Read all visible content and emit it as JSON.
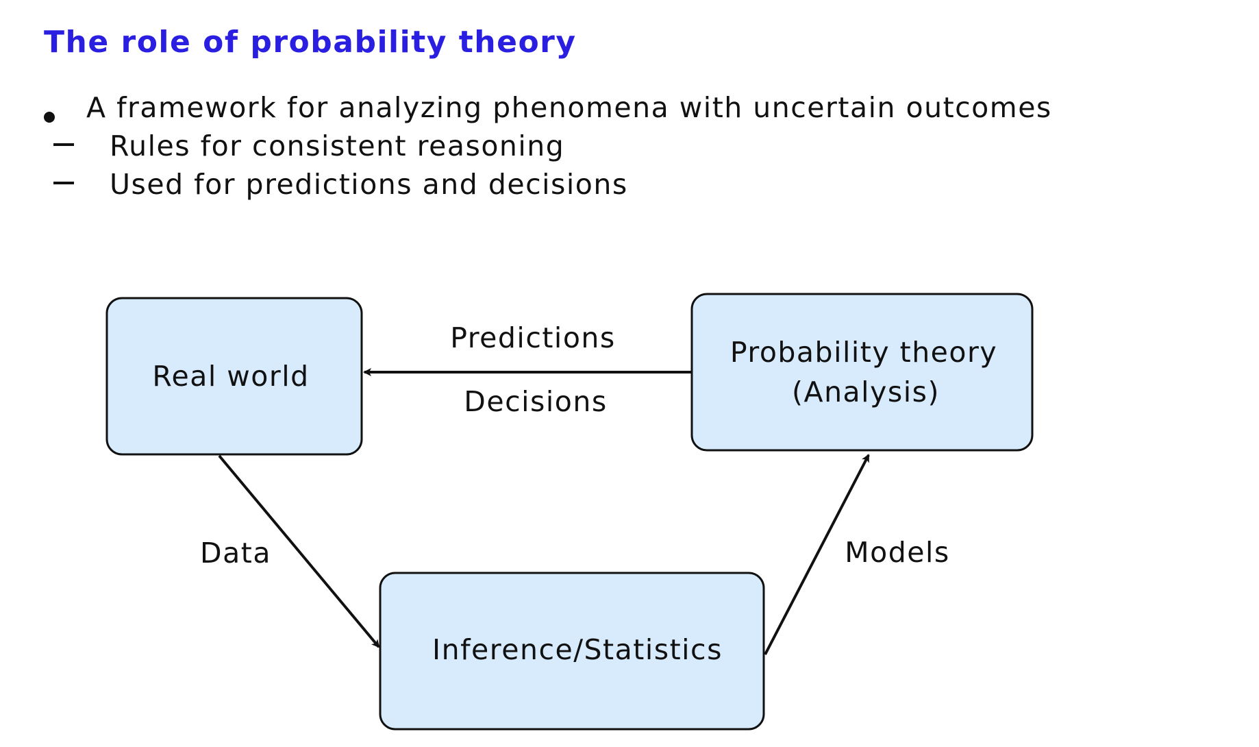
{
  "title": "The role of probability theory",
  "title_color": "#2a1fe0",
  "bullets": [
    {
      "level": 1,
      "text": "A framework for analyzing phenomena with uncertain outcomes"
    },
    {
      "level": 2,
      "text": "Rules for consistent reasoning"
    },
    {
      "level": 2,
      "text": "Used for predictions and decisions"
    }
  ],
  "diagram": {
    "box_fill": "#d8ebfd",
    "box_stroke": "#111111",
    "nodes": {
      "real_world": {
        "label": "Real world"
      },
      "probability_theory": {
        "line1": "Probability theory",
        "line2": "(Analysis)"
      },
      "inference": {
        "label": "Inference/Statistics"
      }
    },
    "edges": {
      "to_real_world": {
        "label_top": "Predictions",
        "label_bottom": "Decisions"
      },
      "to_inference": {
        "label": "Data"
      },
      "to_probability": {
        "label": "Models"
      }
    }
  }
}
